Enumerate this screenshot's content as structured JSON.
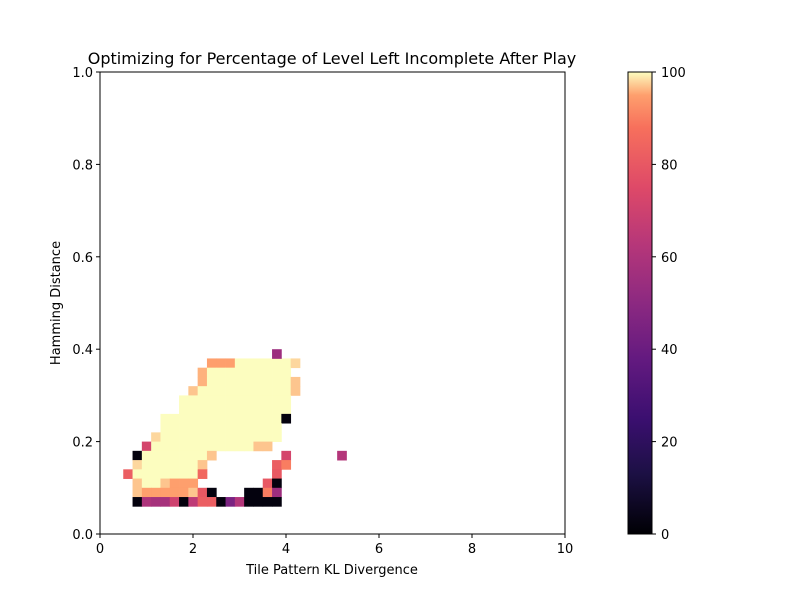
{
  "chart_data": {
    "type": "heatmap",
    "title": "Optimizing for Percentage of Level Left Incomplete After Play",
    "xlabel": "Tile Pattern KL Divergence",
    "ylabel": "Hamming Distance",
    "xlim": [
      0,
      10
    ],
    "ylim": [
      0,
      1.0
    ],
    "x_ticks": [
      "0",
      "2",
      "4",
      "6",
      "8",
      "10"
    ],
    "y_ticks": [
      "0.0",
      "0.2",
      "0.4",
      "0.6",
      "0.8",
      "1.0"
    ],
    "colorbar": {
      "colormap": "magma",
      "range": [
        0,
        100
      ],
      "ticks": [
        "0",
        "20",
        "40",
        "60",
        "80",
        "100"
      ],
      "location": "right"
    },
    "grid": false,
    "cell_size": {
      "x": 0.2,
      "y": 0.02
    },
    "cells": [
      [
        2.4,
        0.37,
        95
      ],
      [
        2.6,
        0.37,
        95
      ],
      [
        2.8,
        0.37,
        95
      ],
      [
        3.0,
        0.37,
        100
      ],
      [
        3.2,
        0.37,
        100
      ],
      [
        3.4,
        0.37,
        100
      ],
      [
        3.6,
        0.37,
        100
      ],
      [
        3.8,
        0.37,
        100
      ],
      [
        4.0,
        0.37,
        100
      ],
      [
        4.2,
        0.37,
        98
      ],
      [
        3.8,
        0.39,
        55
      ],
      [
        2.2,
        0.35,
        96
      ],
      [
        2.4,
        0.35,
        100
      ],
      [
        2.6,
        0.35,
        100
      ],
      [
        2.8,
        0.35,
        100
      ],
      [
        3.0,
        0.35,
        100
      ],
      [
        3.2,
        0.35,
        100
      ],
      [
        3.4,
        0.35,
        100
      ],
      [
        3.6,
        0.35,
        100
      ],
      [
        3.8,
        0.35,
        100
      ],
      [
        4.0,
        0.35,
        100
      ],
      [
        2.2,
        0.33,
        96
      ],
      [
        2.4,
        0.33,
        100
      ],
      [
        2.6,
        0.33,
        100
      ],
      [
        2.8,
        0.33,
        100
      ],
      [
        3.0,
        0.33,
        100
      ],
      [
        3.2,
        0.33,
        100
      ],
      [
        3.4,
        0.33,
        100
      ],
      [
        3.6,
        0.33,
        100
      ],
      [
        3.8,
        0.33,
        100
      ],
      [
        4.0,
        0.33,
        100
      ],
      [
        4.2,
        0.33,
        97
      ],
      [
        2.0,
        0.31,
        97
      ],
      [
        2.2,
        0.31,
        100
      ],
      [
        2.4,
        0.31,
        100
      ],
      [
        2.6,
        0.31,
        100
      ],
      [
        2.8,
        0.31,
        100
      ],
      [
        3.0,
        0.31,
        100
      ],
      [
        3.2,
        0.31,
        100
      ],
      [
        3.4,
        0.31,
        100
      ],
      [
        3.6,
        0.31,
        100
      ],
      [
        3.8,
        0.31,
        100
      ],
      [
        4.0,
        0.31,
        100
      ],
      [
        4.2,
        0.31,
        97
      ],
      [
        1.8,
        0.29,
        100
      ],
      [
        2.0,
        0.29,
        100
      ],
      [
        2.2,
        0.29,
        100
      ],
      [
        2.4,
        0.29,
        100
      ],
      [
        2.6,
        0.29,
        100
      ],
      [
        2.8,
        0.29,
        100
      ],
      [
        3.0,
        0.29,
        100
      ],
      [
        3.2,
        0.29,
        100
      ],
      [
        3.4,
        0.29,
        100
      ],
      [
        3.6,
        0.29,
        100
      ],
      [
        3.8,
        0.29,
        100
      ],
      [
        4.0,
        0.29,
        100
      ],
      [
        1.8,
        0.27,
        100
      ],
      [
        2.0,
        0.27,
        100
      ],
      [
        2.2,
        0.27,
        100
      ],
      [
        2.4,
        0.27,
        100
      ],
      [
        2.6,
        0.27,
        100
      ],
      [
        2.8,
        0.27,
        100
      ],
      [
        3.0,
        0.27,
        100
      ],
      [
        3.2,
        0.27,
        100
      ],
      [
        3.4,
        0.27,
        100
      ],
      [
        3.6,
        0.27,
        100
      ],
      [
        3.8,
        0.27,
        100
      ],
      [
        4.0,
        0.27,
        100
      ],
      [
        1.4,
        0.25,
        100
      ],
      [
        1.6,
        0.25,
        100
      ],
      [
        1.8,
        0.25,
        100
      ],
      [
        2.0,
        0.25,
        100
      ],
      [
        2.2,
        0.25,
        100
      ],
      [
        2.4,
        0.25,
        100
      ],
      [
        2.6,
        0.25,
        100
      ],
      [
        2.8,
        0.25,
        100
      ],
      [
        3.0,
        0.25,
        100
      ],
      [
        3.2,
        0.25,
        100
      ],
      [
        3.4,
        0.25,
        100
      ],
      [
        3.6,
        0.25,
        100
      ],
      [
        3.8,
        0.25,
        100
      ],
      [
        4.0,
        0.25,
        2
      ],
      [
        1.4,
        0.23,
        100
      ],
      [
        1.6,
        0.23,
        100
      ],
      [
        1.8,
        0.23,
        100
      ],
      [
        2.0,
        0.23,
        100
      ],
      [
        2.2,
        0.23,
        100
      ],
      [
        2.4,
        0.23,
        100
      ],
      [
        2.6,
        0.23,
        100
      ],
      [
        2.8,
        0.23,
        100
      ],
      [
        3.0,
        0.23,
        100
      ],
      [
        3.2,
        0.23,
        100
      ],
      [
        3.4,
        0.23,
        100
      ],
      [
        3.6,
        0.23,
        100
      ],
      [
        3.8,
        0.23,
        100
      ],
      [
        1.2,
        0.21,
        98
      ],
      [
        1.4,
        0.21,
        100
      ],
      [
        1.6,
        0.21,
        100
      ],
      [
        1.8,
        0.21,
        100
      ],
      [
        2.0,
        0.21,
        100
      ],
      [
        2.2,
        0.21,
        100
      ],
      [
        2.4,
        0.21,
        100
      ],
      [
        2.6,
        0.21,
        100
      ],
      [
        2.8,
        0.21,
        100
      ],
      [
        3.0,
        0.21,
        100
      ],
      [
        3.2,
        0.21,
        100
      ],
      [
        3.4,
        0.21,
        100
      ],
      [
        3.6,
        0.21,
        100
      ],
      [
        3.8,
        0.21,
        100
      ],
      [
        1.0,
        0.19,
        72
      ],
      [
        1.2,
        0.19,
        100
      ],
      [
        1.4,
        0.19,
        100
      ],
      [
        1.6,
        0.19,
        100
      ],
      [
        1.8,
        0.19,
        100
      ],
      [
        2.0,
        0.19,
        100
      ],
      [
        2.2,
        0.19,
        100
      ],
      [
        2.4,
        0.19,
        100
      ],
      [
        2.6,
        0.19,
        100
      ],
      [
        2.8,
        0.19,
        100
      ],
      [
        3.0,
        0.19,
        100
      ],
      [
        3.2,
        0.19,
        100
      ],
      [
        3.4,
        0.19,
        97
      ],
      [
        3.6,
        0.19,
        97
      ],
      [
        0.8,
        0.17,
        2
      ],
      [
        1.0,
        0.17,
        100
      ],
      [
        1.2,
        0.17,
        100
      ],
      [
        1.4,
        0.17,
        100
      ],
      [
        1.6,
        0.17,
        100
      ],
      [
        1.8,
        0.17,
        100
      ],
      [
        2.0,
        0.17,
        100
      ],
      [
        2.2,
        0.17,
        100
      ],
      [
        2.4,
        0.17,
        97
      ],
      [
        4.0,
        0.17,
        72
      ],
      [
        5.2,
        0.17,
        62
      ],
      [
        0.8,
        0.15,
        98
      ],
      [
        1.0,
        0.15,
        100
      ],
      [
        1.2,
        0.15,
        100
      ],
      [
        1.4,
        0.15,
        100
      ],
      [
        1.6,
        0.15,
        100
      ],
      [
        1.8,
        0.15,
        100
      ],
      [
        2.0,
        0.15,
        100
      ],
      [
        2.2,
        0.15,
        97
      ],
      [
        3.8,
        0.15,
        82
      ],
      [
        4.0,
        0.15,
        90
      ],
      [
        0.6,
        0.13,
        82
      ],
      [
        0.8,
        0.13,
        100
      ],
      [
        1.0,
        0.13,
        100
      ],
      [
        1.2,
        0.13,
        100
      ],
      [
        1.4,
        0.13,
        100
      ],
      [
        1.6,
        0.13,
        100
      ],
      [
        1.8,
        0.13,
        100
      ],
      [
        2.0,
        0.13,
        100
      ],
      [
        2.2,
        0.13,
        85
      ],
      [
        3.8,
        0.13,
        80
      ],
      [
        0.8,
        0.11,
        97
      ],
      [
        1.0,
        0.11,
        100
      ],
      [
        1.2,
        0.11,
        100
      ],
      [
        1.4,
        0.11,
        97
      ],
      [
        1.6,
        0.11,
        95
      ],
      [
        1.8,
        0.11,
        95
      ],
      [
        2.0,
        0.11,
        95
      ],
      [
        3.6,
        0.11,
        80
      ],
      [
        3.8,
        0.11,
        2
      ],
      [
        0.8,
        0.09,
        97
      ],
      [
        1.0,
        0.09,
        95
      ],
      [
        1.2,
        0.09,
        95
      ],
      [
        1.4,
        0.09,
        95
      ],
      [
        1.6,
        0.09,
        95
      ],
      [
        1.8,
        0.09,
        95
      ],
      [
        2.0,
        0.09,
        97
      ],
      [
        2.2,
        0.09,
        80
      ],
      [
        2.4,
        0.09,
        2
      ],
      [
        3.2,
        0.09,
        2
      ],
      [
        3.4,
        0.09,
        2
      ],
      [
        3.6,
        0.09,
        90
      ],
      [
        3.8,
        0.09,
        55
      ],
      [
        0.8,
        0.07,
        2
      ],
      [
        1.0,
        0.07,
        60
      ],
      [
        1.2,
        0.07,
        58
      ],
      [
        1.4,
        0.07,
        58
      ],
      [
        1.6,
        0.07,
        70
      ],
      [
        1.8,
        0.07,
        2
      ],
      [
        2.0,
        0.07,
        65
      ],
      [
        2.2,
        0.07,
        82
      ],
      [
        2.4,
        0.07,
        82
      ],
      [
        2.6,
        0.07,
        2
      ],
      [
        2.8,
        0.07,
        45
      ],
      [
        3.0,
        0.07,
        62
      ],
      [
        3.2,
        0.07,
        2
      ],
      [
        3.4,
        0.07,
        2
      ],
      [
        3.6,
        0.07,
        2
      ],
      [
        3.8,
        0.07,
        2
      ]
    ]
  }
}
